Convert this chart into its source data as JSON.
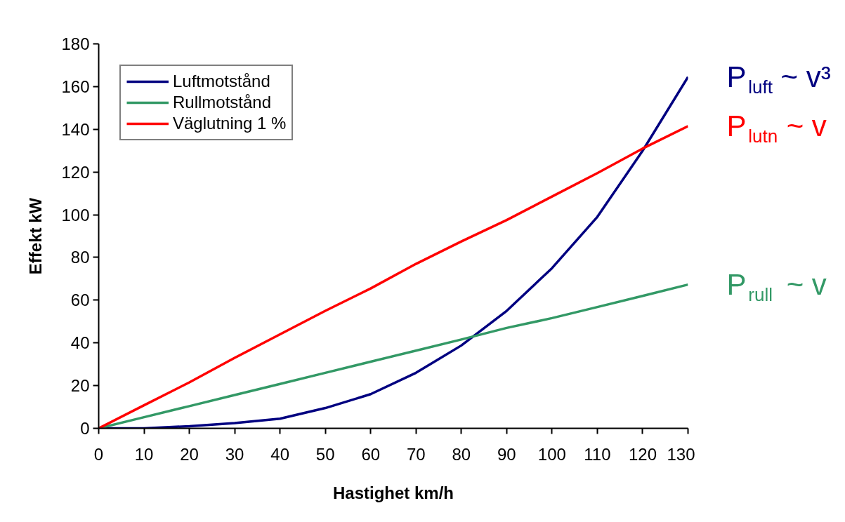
{
  "chart_data": {
    "type": "line",
    "xlabel": "Hastighet km/h",
    "ylabel": "Effekt kW",
    "x": [
      0,
      10,
      20,
      30,
      40,
      50,
      60,
      70,
      80,
      90,
      100,
      110,
      120,
      130
    ],
    "series": [
      {
        "name": "Luftmotstånd",
        "color": "#000080",
        "values": [
          0,
          0,
          1,
          2.5,
          4.5,
          9.5,
          16,
          26,
          38.8,
          55,
          75,
          99,
          130,
          164.5
        ]
      },
      {
        "name": "Rullmotstånd",
        "color": "#339966",
        "values": [
          0,
          5.2,
          10.4,
          15.6,
          20.8,
          26,
          31.2,
          36.4,
          41.6,
          47,
          51.6,
          56.8,
          62,
          67.3
        ]
      },
      {
        "name": "Väglutning 1 %",
        "color": "#ff0000",
        "values": [
          0,
          10.8,
          21.5,
          33,
          44,
          55,
          65.5,
          77,
          87.5,
          97.5,
          108.5,
          119.5,
          131,
          141.5
        ]
      }
    ],
    "xlim": [
      0,
      130
    ],
    "xticks": [
      0,
      10,
      20,
      30,
      40,
      50,
      60,
      70,
      80,
      90,
      100,
      110,
      120,
      130
    ],
    "ylim": [
      0,
      180
    ],
    "yticks": [
      0,
      20,
      40,
      60,
      80,
      100,
      120,
      140,
      160,
      180
    ],
    "annotations": [
      "P$_{luft}$ ~ v³",
      "P$_{lutn}$ ~ v",
      "P$_{rull}$ ~ v"
    ],
    "grid": false,
    "legend": "top left",
    "marker": "none",
    "line_style": "solid"
  }
}
